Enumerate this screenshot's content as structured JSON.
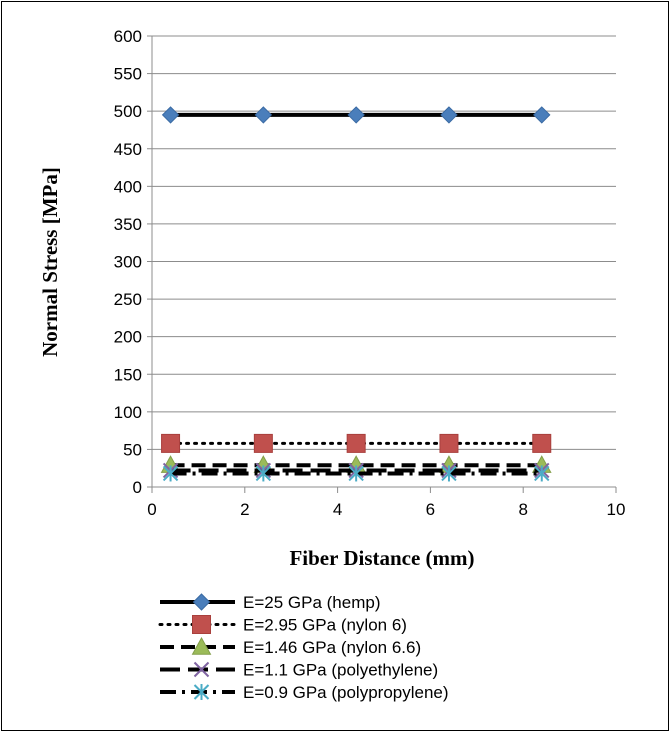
{
  "chart_data": {
    "type": "line",
    "title": "",
    "xlabel": "Fiber Distance (mm)",
    "ylabel": "Normal Stress [MPa]",
    "xlim": [
      0,
      10
    ],
    "ylim": [
      0,
      600
    ],
    "xticks": [
      0,
      2,
      4,
      6,
      8,
      10
    ],
    "yticks": [
      0,
      50,
      100,
      150,
      200,
      250,
      300,
      350,
      400,
      450,
      500,
      550,
      600
    ],
    "grid": "horizontal major gridlines",
    "legend_position": "bottom",
    "x": [
      0.4,
      2.4,
      4.4,
      6.4,
      8.4
    ],
    "series": [
      {
        "name": "E=25 GPa (hemp)",
        "values": [
          495,
          495,
          495,
          495,
          495
        ],
        "color": "#4a7ebb",
        "marker": "diamond",
        "line_style": "solid"
      },
      {
        "name": "E=2.95 GPa (nylon 6)",
        "values": [
          58,
          58,
          58,
          58,
          58
        ],
        "color": "#c0504d",
        "marker": "square",
        "line_style": "dotted"
      },
      {
        "name": "E=1.46 GPa (nylon 6.6)",
        "values": [
          29,
          29,
          29,
          29,
          29
        ],
        "color": "#9bbb59",
        "marker": "triangle",
        "line_style": "dashed"
      },
      {
        "name": "E=1.1 GPa (polyethylene)",
        "values": [
          22,
          22,
          22,
          22,
          22
        ],
        "color": "#8064a2",
        "marker": "x",
        "line_style": "long-dash"
      },
      {
        "name": "E=0.9 GPa (polypropylene)",
        "values": [
          18,
          18,
          18,
          18,
          18
        ],
        "color": "#4bacc6",
        "marker": "star",
        "line_style": "dash-dot"
      }
    ]
  }
}
